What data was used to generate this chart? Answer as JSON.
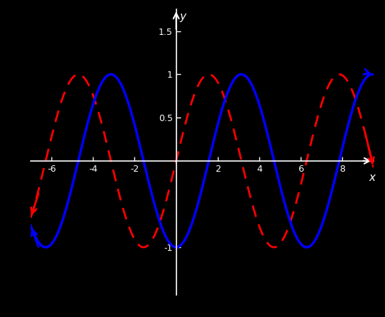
{
  "background_color": "#000000",
  "axis_color": "#ffffff",
  "sine_color": "#ff0000",
  "cosine_color": "#0000ff",
  "sine_linestyle": "--",
  "cosine_linestyle": "-",
  "sine_linewidth": 2.0,
  "cosine_linewidth": 2.5,
  "x_min": -7.0,
  "x_max": 9.5,
  "y_min": -1.55,
  "y_max": 1.75,
  "x_ticks": [
    -6,
    -4,
    -2,
    2,
    4,
    6,
    8
  ],
  "y_ticks": [
    -1,
    0.5,
    1,
    1.5
  ],
  "xlabel": "x",
  "ylabel": "y"
}
